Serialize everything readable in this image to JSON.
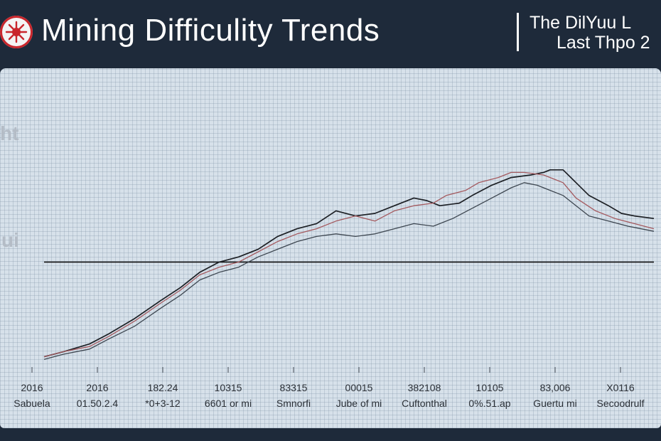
{
  "header": {
    "title": "Mining Difficulity Trends",
    "subtitle_line1": "The DilYuu L",
    "subtitle_line2": "Last Thpo 2",
    "logo_icon": "red-star-burst-icon"
  },
  "side_labels": {
    "upper": "ht",
    "lower": "ui"
  },
  "colors": {
    "background": "#1e2a3a",
    "panel": "#d7e1ea",
    "series_dark": "#1c1f24",
    "series_red": "#a45a5f",
    "series_gray": "#3d4650",
    "reference_line": "#111111",
    "logo_accent": "#c9262c"
  },
  "chart_data": {
    "type": "line",
    "title": "Mining Difficulity Trends",
    "x_tick_labels": [
      "2016",
      "2016",
      "182.24",
      "10315",
      "83315",
      "00015",
      "382108",
      "10105",
      "83,006",
      "X0116"
    ],
    "x_tick_sublabels": [
      "Sabuela",
      "01.50.2.4",
      "*0+3-12",
      "6601 or mi",
      "Smnorfi",
      "Jube of mi",
      "Cuftonthal",
      "0%.51.ap",
      "Guertu mi",
      "Secoodrulf"
    ],
    "xlim": [
      0,
      94
    ],
    "ylim": [
      0,
      100
    ],
    "grid": true,
    "legend": "none",
    "reference_line": 41,
    "series": [
      {
        "values": [
          [
            0,
            4
          ],
          [
            3,
            6
          ],
          [
            7,
            9
          ],
          [
            10,
            13
          ],
          [
            14,
            19
          ],
          [
            18,
            26
          ],
          [
            21,
            31
          ],
          [
            24,
            37
          ],
          [
            27,
            41
          ],
          [
            30,
            43
          ],
          [
            33,
            46
          ],
          [
            36,
            51
          ],
          [
            39,
            54
          ],
          [
            42,
            56
          ],
          [
            45,
            61
          ],
          [
            48,
            59
          ],
          [
            51,
            60
          ],
          [
            54,
            63
          ],
          [
            57,
            66
          ],
          [
            59,
            65
          ],
          [
            61,
            63
          ],
          [
            64,
            64
          ],
          [
            66,
            67
          ],
          [
            69,
            71
          ],
          [
            72,
            74
          ],
          [
            75,
            75
          ],
          [
            77,
            76
          ],
          [
            78,
            77
          ],
          [
            80,
            77
          ],
          [
            82,
            72
          ],
          [
            84,
            67
          ],
          [
            87,
            63
          ],
          [
            89,
            60
          ],
          [
            91,
            59
          ],
          [
            94,
            58
          ]
        ]
      },
      {
        "values": [
          [
            0,
            4
          ],
          [
            3,
            6
          ],
          [
            7,
            8
          ],
          [
            10,
            12
          ],
          [
            14,
            18
          ],
          [
            18,
            25
          ],
          [
            21,
            30
          ],
          [
            24,
            36
          ],
          [
            27,
            39
          ],
          [
            30,
            41
          ],
          [
            33,
            45
          ],
          [
            36,
            49
          ],
          [
            39,
            52
          ],
          [
            42,
            54
          ],
          [
            45,
            57
          ],
          [
            48,
            59
          ],
          [
            51,
            57
          ],
          [
            54,
            61
          ],
          [
            57,
            63
          ],
          [
            60,
            64
          ],
          [
            62,
            67
          ],
          [
            65,
            69
          ],
          [
            67,
            72
          ],
          [
            70,
            74
          ],
          [
            72,
            76
          ],
          [
            74,
            76
          ],
          [
            77,
            75
          ],
          [
            80,
            72
          ],
          [
            82,
            66
          ],
          [
            85,
            61
          ],
          [
            88,
            58
          ],
          [
            91,
            56
          ],
          [
            94,
            54
          ]
        ]
      },
      {
        "values": [
          [
            0,
            3
          ],
          [
            3,
            5
          ],
          [
            7,
            7
          ],
          [
            10,
            11
          ],
          [
            14,
            16
          ],
          [
            18,
            23
          ],
          [
            21,
            28
          ],
          [
            24,
            34
          ],
          [
            27,
            37
          ],
          [
            30,
            39
          ],
          [
            33,
            43
          ],
          [
            36,
            46
          ],
          [
            39,
            49
          ],
          [
            42,
            51
          ],
          [
            45,
            52
          ],
          [
            48,
            51
          ],
          [
            51,
            52
          ],
          [
            54,
            54
          ],
          [
            57,
            56
          ],
          [
            60,
            55
          ],
          [
            63,
            58
          ],
          [
            66,
            62
          ],
          [
            69,
            66
          ],
          [
            72,
            70
          ],
          [
            74,
            72
          ],
          [
            76,
            71
          ],
          [
            78,
            69
          ],
          [
            80,
            67
          ],
          [
            82,
            63
          ],
          [
            84,
            59
          ],
          [
            87,
            57
          ],
          [
            90,
            55
          ],
          [
            94,
            53
          ]
        ]
      }
    ]
  }
}
